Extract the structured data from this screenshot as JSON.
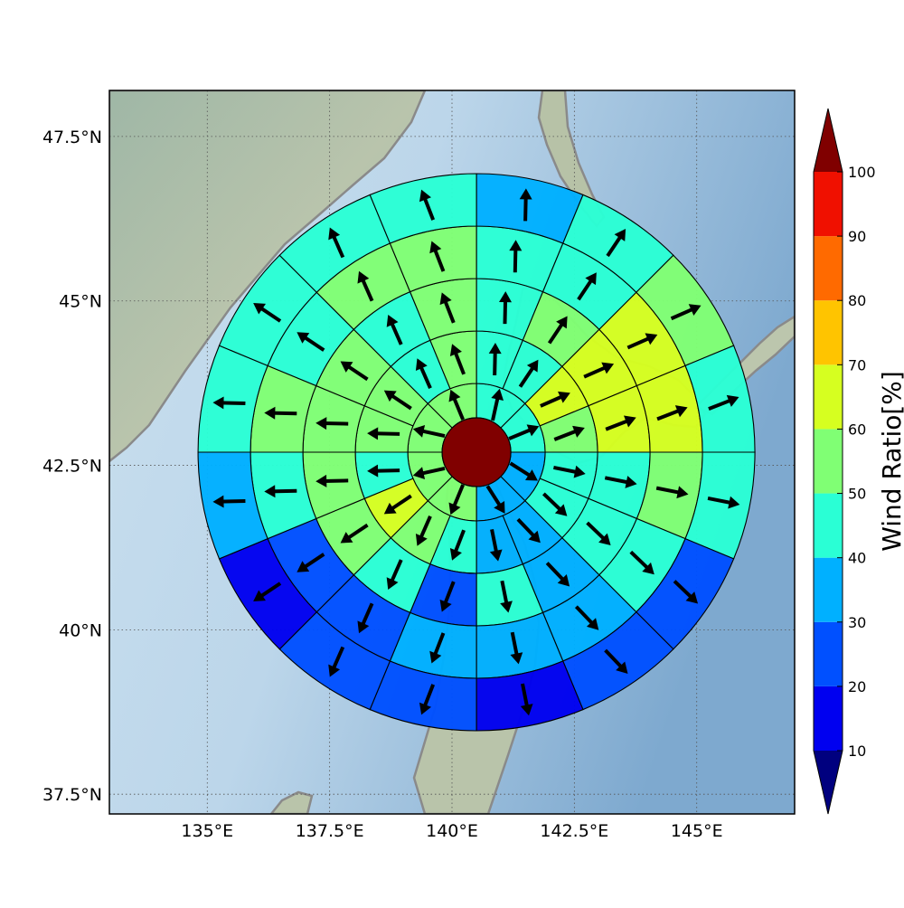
{
  "chart_data": {
    "type": "heatmap",
    "title": "",
    "xlabel": "",
    "ylabel": "",
    "map": {
      "lon_range": [
        133.0,
        147.0
      ],
      "lat_range": [
        37.2,
        48.2
      ],
      "x_ticks": [
        {
          "value": 135.0,
          "label": "135°E"
        },
        {
          "value": 137.5,
          "label": "137.5°E"
        },
        {
          "value": 140.0,
          "label": "140°E"
        },
        {
          "value": 142.5,
          "label": "142.5°E"
        },
        {
          "value": 145.0,
          "label": "145°E"
        }
      ],
      "y_ticks": [
        {
          "value": 37.5,
          "label": "37.5°N"
        },
        {
          "value": 40.0,
          "label": "40°N"
        },
        {
          "value": 42.5,
          "label": "42.5°N"
        },
        {
          "value": 45.0,
          "label": "45°N"
        },
        {
          "value": 47.5,
          "label": "47.5°N"
        }
      ],
      "grid": true,
      "grid_style": "dotted",
      "background": "shaded relief with ocean and grey coastlines"
    },
    "polar_grid": {
      "center": {
        "lon": 140.5,
        "lat": 42.7
      },
      "ring_count": 5,
      "sector_angle_deg": 22.5,
      "sector_start_deg": 0,
      "rings": [
        {
          "sectors": 8,
          "values": [
            45,
            45,
            38,
            35,
            55,
            58,
            55,
            55
          ]
        },
        {
          "sectors": 16,
          "values": [
            45,
            48,
            65,
            55,
            45,
            45,
            38,
            35,
            48,
            52,
            65,
            45,
            55,
            52,
            48,
            55
          ]
        },
        {
          "sectors": 16,
          "values": [
            45,
            52,
            65,
            65,
            45,
            45,
            38,
            45,
            25,
            45,
            52,
            55,
            55,
            55,
            45,
            55
          ]
        },
        {
          "sectors": 16,
          "values": [
            45,
            48,
            62,
            62,
            52,
            45,
            38,
            38,
            35,
            25,
            25,
            45,
            55,
            48,
            55,
            55
          ]
        },
        {
          "sectors": 16,
          "values": [
            35,
            45,
            55,
            45,
            45,
            25,
            25,
            15,
            25,
            25,
            15,
            35,
            45,
            45,
            45,
            45
          ]
        }
      ],
      "center_circle_value": 100
    },
    "colorbar": {
      "label": "Wind Ratio[%]",
      "orientation": "vertical",
      "extend": "both",
      "ticks": [
        10,
        20,
        30,
        40,
        50,
        60,
        70,
        80,
        90,
        100
      ],
      "levels": [
        {
          "from": 10,
          "to": 20,
          "color": "#0000f0"
        },
        {
          "from": 20,
          "to": 30,
          "color": "#0050ff"
        },
        {
          "from": 30,
          "to": 40,
          "color": "#00b0ff"
        },
        {
          "from": 40,
          "to": 50,
          "color": "#2affd5"
        },
        {
          "from": 50,
          "to": 60,
          "color": "#80ff74"
        },
        {
          "from": 60,
          "to": 70,
          "color": "#d6ff20"
        },
        {
          "from": 70,
          "to": 80,
          "color": "#ffc400"
        },
        {
          "from": 80,
          "to": 90,
          "color": "#ff6a00"
        },
        {
          "from": 90,
          "to": 100,
          "color": "#f01000"
        }
      ],
      "under_color": "#00007f",
      "over_color": "#800000"
    }
  }
}
